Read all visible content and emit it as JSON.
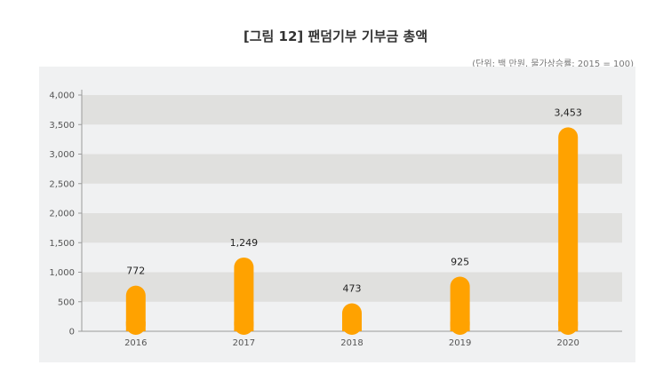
{
  "title": "[그림 12] 팬덤기부 기부금 총액",
  "unit_note": "(단위: 백 만원, 물가상승률: 2015 = 100)",
  "colors": {
    "bar": "#ffa200",
    "band": "#e0e0de",
    "panel": "#f0f1f2"
  },
  "chart_data": {
    "type": "bar",
    "title": "[그림 12] 팬덤기부 기부금 총액",
    "xlabel": "",
    "ylabel": "",
    "categories": [
      "2016",
      "2017",
      "2018",
      "2019",
      "2020"
    ],
    "values": [
      772,
      1249,
      473,
      925,
      3453
    ],
    "value_labels": [
      "772",
      "1,249",
      "473",
      "925",
      "3,453"
    ],
    "yticks": [
      0,
      500,
      1000,
      1500,
      2000,
      2500,
      3000,
      3500,
      4000
    ],
    "ytick_labels": [
      "0",
      "500",
      "1,000",
      "1,500",
      "2,000",
      "2,500",
      "3,000",
      "3,500",
      "4,000"
    ],
    "ylim": [
      0,
      4000
    ],
    "grid": "alternating horizontal bands",
    "legend": "none"
  }
}
